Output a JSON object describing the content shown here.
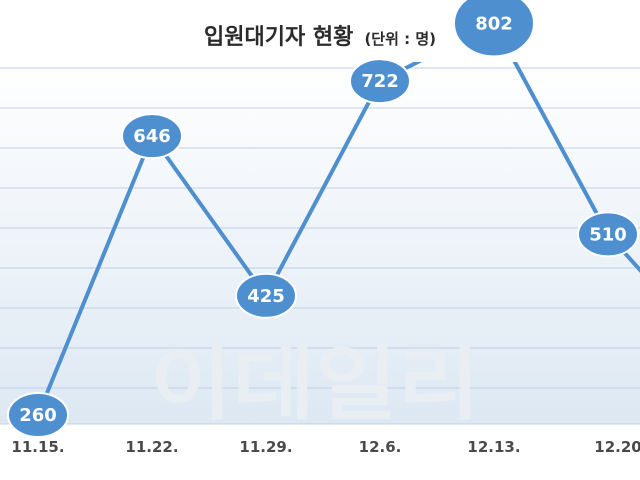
{
  "colors": {
    "background_top": "#ffffff",
    "background_bottom": "#dde8f3",
    "gridline": "#bfd0e2",
    "line": "#4e8fd0",
    "marker": "#4e8fd0",
    "marker_stroke": "#ffffff",
    "label": "#ffffff"
  },
  "watermark": "이데일리",
  "chart_data": {
    "type": "line",
    "title": "입원대기자 현황",
    "subtitle": "(단위 : 명)",
    "categories": [
      "11.15.",
      "11.22.",
      "11.29.",
      "12.6.",
      "12.13.",
      "12.20"
    ],
    "series": [
      {
        "values": [
          260,
          646,
          425,
          722,
          802,
          510
        ]
      }
    ],
    "ylim": [
      0,
      1000
    ],
    "grid": true,
    "legend": "none"
  }
}
